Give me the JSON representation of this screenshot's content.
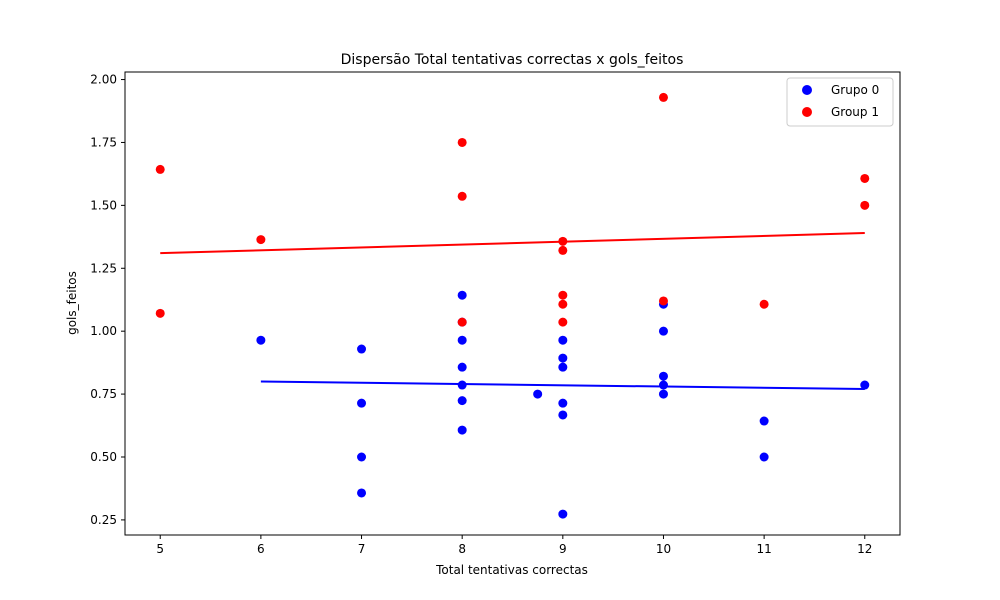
{
  "chart_data": {
    "type": "scatter",
    "title": "Dispersão Total tentativas correctas x gols_feitos",
    "xlabel": "Total tentativas correctas",
    "ylabel": "gols_feitos",
    "xlim": [
      4.65,
      12.35
    ],
    "ylim": [
      0.19,
      2.03
    ],
    "xticks": [
      5,
      6,
      7,
      8,
      9,
      10,
      11,
      12
    ],
    "yticks": [
      0.25,
      0.5,
      0.75,
      1.0,
      1.25,
      1.5,
      1.75,
      2.0
    ],
    "ytick_labels": [
      "0.25",
      "0.50",
      "0.75",
      "1.00",
      "1.25",
      "1.50",
      "1.75",
      "2.00"
    ],
    "grid": false,
    "legend_position": "top-right",
    "series": [
      {
        "name": "Grupo 0",
        "color": "#0000ff",
        "points": [
          [
            6,
            0.964
          ],
          [
            7,
            0.929
          ],
          [
            7,
            0.714
          ],
          [
            7,
            0.5
          ],
          [
            7,
            0.357
          ],
          [
            8,
            1.143
          ],
          [
            8,
            1.036
          ],
          [
            8,
            0.964
          ],
          [
            8,
            0.857
          ],
          [
            8,
            0.786
          ],
          [
            8,
            0.724
          ],
          [
            8,
            0.607
          ],
          [
            8.75,
            0.75
          ],
          [
            9,
            0.964
          ],
          [
            9,
            0.893
          ],
          [
            9,
            0.857
          ],
          [
            9,
            0.714
          ],
          [
            9,
            0.667
          ],
          [
            9,
            0.273
          ],
          [
            10,
            1.107
          ],
          [
            10,
            1.0
          ],
          [
            10,
            0.821
          ],
          [
            10,
            0.786
          ],
          [
            10,
            0.75
          ],
          [
            11,
            0.643
          ],
          [
            11,
            0.5
          ],
          [
            12,
            0.786
          ]
        ],
        "trendline": {
          "x": [
            6,
            12
          ],
          "y": [
            0.8,
            0.77
          ]
        }
      },
      {
        "name": "Group 1",
        "color": "#ff0000",
        "points": [
          [
            5,
            1.643
          ],
          [
            5,
            1.071
          ],
          [
            6,
            1.364
          ],
          [
            8,
            1.75
          ],
          [
            8,
            1.536
          ],
          [
            8,
            1.036
          ],
          [
            9,
            1.357
          ],
          [
            9,
            1.321
          ],
          [
            9,
            1.143
          ],
          [
            9,
            1.107
          ],
          [
            9,
            1.036
          ],
          [
            10,
            1.929
          ],
          [
            10,
            1.12
          ],
          [
            11,
            1.107
          ],
          [
            12,
            1.607
          ],
          [
            12,
            1.5
          ]
        ],
        "trendline": {
          "x": [
            5,
            12
          ],
          "y": [
            1.31,
            1.39
          ]
        }
      }
    ]
  }
}
